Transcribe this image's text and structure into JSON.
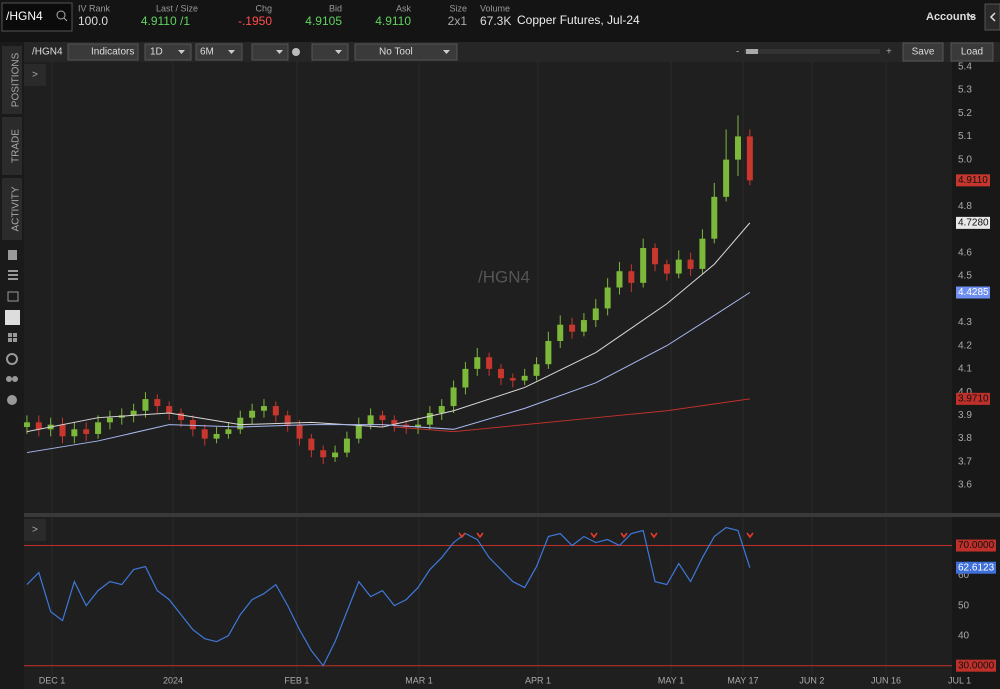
{
  "header": {
    "symbol": "/HGN4",
    "fields": [
      {
        "label": "IV Rank",
        "value": "100.0",
        "color": "#dddddd"
      },
      {
        "label": "Last / Size",
        "value": "4.9110 /1",
        "color": "#5fd35f"
      },
      {
        "label": "Chg",
        "value": "-.1950",
        "color": "#ff4d4d"
      },
      {
        "label": "Bid",
        "value": "4.9105",
        "color": "#5fd35f"
      },
      {
        "label": "Ask",
        "value": "4.9110",
        "color": "#5fd35f"
      },
      {
        "label": "Size",
        "value": "2x1",
        "color": "#aaaaaa"
      },
      {
        "label": "Volume",
        "value": "67.3K",
        "color": "#dddddd"
      }
    ],
    "description": "Copper Futures, Jul-24",
    "accounts": "Accounts"
  },
  "sidebar": {
    "tabs": [
      "POSITIONS",
      "TRADE",
      "ACTIVITY"
    ]
  },
  "toolbar": {
    "symbol": "/HGN4",
    "indicators": "Indicators",
    "interval": "1D",
    "range": "6M",
    "tool": "No Tool",
    "zoom_out": "-",
    "zoom_in": "+",
    "save": "Save",
    "load": "Load"
  },
  "chart_data": [
    {
      "type": "candlestick",
      "watermark": "/HGN4",
      "collapse": ">",
      "up_color": "#7cb83a",
      "down_color": "#c8372d",
      "open": [
        3.85,
        3.87,
        3.84,
        3.86,
        3.81,
        3.84,
        3.82,
        3.87,
        3.89,
        3.9,
        3.92,
        3.97,
        3.94,
        3.91,
        3.88,
        3.84,
        3.8,
        3.82,
        3.84,
        3.89,
        3.92,
        3.94,
        3.9,
        3.86,
        3.8,
        3.75,
        3.72,
        3.74,
        3.8,
        3.86,
        3.9,
        3.88,
        3.86,
        3.85,
        3.86,
        3.91,
        3.94,
        4.02,
        4.1,
        4.15,
        4.1,
        4.06,
        4.05,
        4.07,
        4.12,
        4.22,
        4.29,
        4.26,
        4.31,
        4.36,
        4.45,
        4.52,
        4.47,
        4.62,
        4.55,
        4.51,
        4.57,
        4.53,
        4.66,
        4.84,
        5.0,
        5.1
      ],
      "high": [
        3.9,
        3.9,
        3.89,
        3.89,
        3.87,
        3.87,
        3.9,
        3.92,
        3.93,
        3.95,
        4.0,
        3.99,
        3.96,
        3.93,
        3.9,
        3.86,
        3.85,
        3.87,
        3.92,
        3.95,
        3.97,
        3.96,
        3.92,
        3.88,
        3.82,
        3.77,
        3.77,
        3.83,
        3.89,
        3.93,
        3.92,
        3.9,
        3.88,
        3.89,
        3.94,
        3.97,
        4.05,
        4.13,
        4.19,
        4.17,
        4.12,
        4.08,
        4.1,
        4.15,
        4.26,
        4.33,
        4.32,
        4.34,
        4.4,
        4.49,
        4.56,
        4.55,
        4.66,
        4.64,
        4.57,
        4.61,
        4.6,
        4.7,
        4.9,
        5.13,
        5.19,
        5.13
      ],
      "low": [
        3.82,
        3.81,
        3.81,
        3.78,
        3.78,
        3.79,
        3.8,
        3.84,
        3.86,
        3.87,
        3.89,
        3.91,
        3.88,
        3.85,
        3.81,
        3.77,
        3.78,
        3.8,
        3.82,
        3.86,
        3.89,
        3.87,
        3.83,
        3.77,
        3.72,
        3.69,
        3.7,
        3.72,
        3.78,
        3.84,
        3.85,
        3.83,
        3.82,
        3.82,
        3.84,
        3.88,
        3.91,
        3.99,
        4.07,
        4.07,
        4.03,
        4.02,
        4.03,
        4.05,
        4.1,
        4.19,
        4.23,
        4.24,
        4.28,
        4.33,
        4.42,
        4.43,
        4.45,
        4.52,
        4.48,
        4.49,
        4.5,
        4.51,
        4.64,
        4.82,
        4.93,
        4.89
      ],
      "close": [
        3.87,
        3.84,
        3.86,
        3.81,
        3.84,
        3.82,
        3.87,
        3.89,
        3.9,
        3.92,
        3.97,
        3.94,
        3.91,
        3.88,
        3.84,
        3.8,
        3.82,
        3.84,
        3.89,
        3.92,
        3.94,
        3.9,
        3.86,
        3.8,
        3.75,
        3.72,
        3.74,
        3.8,
        3.86,
        3.9,
        3.88,
        3.86,
        3.85,
        3.86,
        3.91,
        3.94,
        4.02,
        4.1,
        4.15,
        4.1,
        4.06,
        4.05,
        4.07,
        4.12,
        4.22,
        4.29,
        4.26,
        4.31,
        4.36,
        4.45,
        4.52,
        4.47,
        4.62,
        4.55,
        4.51,
        4.57,
        4.53,
        4.66,
        4.84,
        5.0,
        5.1,
        4.911
      ],
      "lines": [
        {
          "color": "#d8d8d8",
          "x": [
            0,
            6,
            12,
            18,
            24,
            30,
            36,
            42,
            48,
            54,
            58,
            61
          ],
          "values": [
            3.83,
            3.89,
            3.91,
            3.86,
            3.87,
            3.85,
            3.92,
            4.02,
            4.17,
            4.38,
            4.55,
            4.728
          ]
        },
        {
          "color": "#a9b8f0",
          "x": [
            0,
            6,
            12,
            18,
            24,
            30,
            36,
            42,
            48,
            54,
            58,
            61
          ],
          "values": [
            3.74,
            3.79,
            3.86,
            3.85,
            3.86,
            3.86,
            3.84,
            3.93,
            4.04,
            4.2,
            4.33,
            4.4285
          ]
        },
        {
          "color": "#c0302a",
          "x": [
            31,
            36,
            42,
            48,
            54,
            61
          ],
          "values": [
            3.85,
            3.83,
            3.86,
            3.89,
            3.92,
            3.971
          ]
        }
      ],
      "price_labels": [
        {
          "value": 4.911,
          "label": "4.9110",
          "color": "#c8372d",
          "text_color": "#111111"
        },
        {
          "value": 4.728,
          "label": "4.7280",
          "color": "#e8e8e8",
          "text_color": "#111111"
        },
        {
          "value": 4.4285,
          "label": "4.4285",
          "color": "#6f8ff0",
          "text_color": "#ffffff"
        },
        {
          "value": 3.971,
          "label": "3.9710",
          "color": "#c0302a",
          "text_color": "#111111"
        }
      ],
      "xlim": [
        -0.25,
        78.06
      ],
      "ylim": [
        3.48,
        5.42
      ],
      "yticks": [
        5.4,
        5.3,
        5.2,
        5.1,
        {
          "value": 5.0,
          "label": "5.0"
        },
        4.8,
        4.6,
        4.5,
        4.3,
        4.2,
        4.1,
        {
          "value": 4.0,
          "label": "4.0"
        },
        3.9,
        3.8,
        3.7,
        3.6
      ]
    },
    {
      "type": "line",
      "collapse": ">",
      "color": "#3f78d8",
      "values": [
        57,
        61,
        48,
        45,
        58,
        50,
        55,
        58,
        57,
        62,
        63,
        55,
        52,
        47,
        42,
        39,
        38,
        40,
        47,
        52,
        54,
        57,
        50,
        42,
        35,
        30,
        38,
        48,
        58,
        53,
        55,
        50,
        52,
        56,
        62,
        66,
        71,
        74,
        72,
        66,
        62,
        58,
        56,
        63,
        73,
        74,
        70,
        73,
        71,
        72,
        70,
        74,
        75,
        58,
        57,
        64,
        58,
        66,
        73,
        76,
        75,
        62.6123
      ],
      "value_labels": {
        "61": "62.6123"
      },
      "levels": [
        {
          "value": 70,
          "label": "70.0000",
          "color": "#c0302a"
        },
        {
          "value": 30,
          "label": "30.0000",
          "color": "#c0302a"
        }
      ],
      "xlim": [
        -0.25,
        78.06
      ],
      "ylim": [
        26.9,
        79.5
      ],
      "yticks": [
        40,
        50,
        60
      ],
      "xticks": [
        {
          "value": 2.11,
          "label": "DEC 1"
        },
        {
          "value": 12.32,
          "label": "2024"
        },
        {
          "value": 22.78,
          "label": "FEB 1"
        },
        {
          "value": 33.08,
          "label": "MAR 1"
        },
        {
          "value": 43.12,
          "label": "APR 1"
        },
        {
          "value": 54.35,
          "label": "MAY 1"
        },
        {
          "value": 60.42,
          "label": "MAY 17"
        },
        {
          "value": 66.24,
          "label": "JUN 2"
        },
        {
          "value": 72.49,
          "label": "JUN 16"
        },
        {
          "value": 78.7,
          "label": "JUL 1"
        }
      ]
    }
  ]
}
